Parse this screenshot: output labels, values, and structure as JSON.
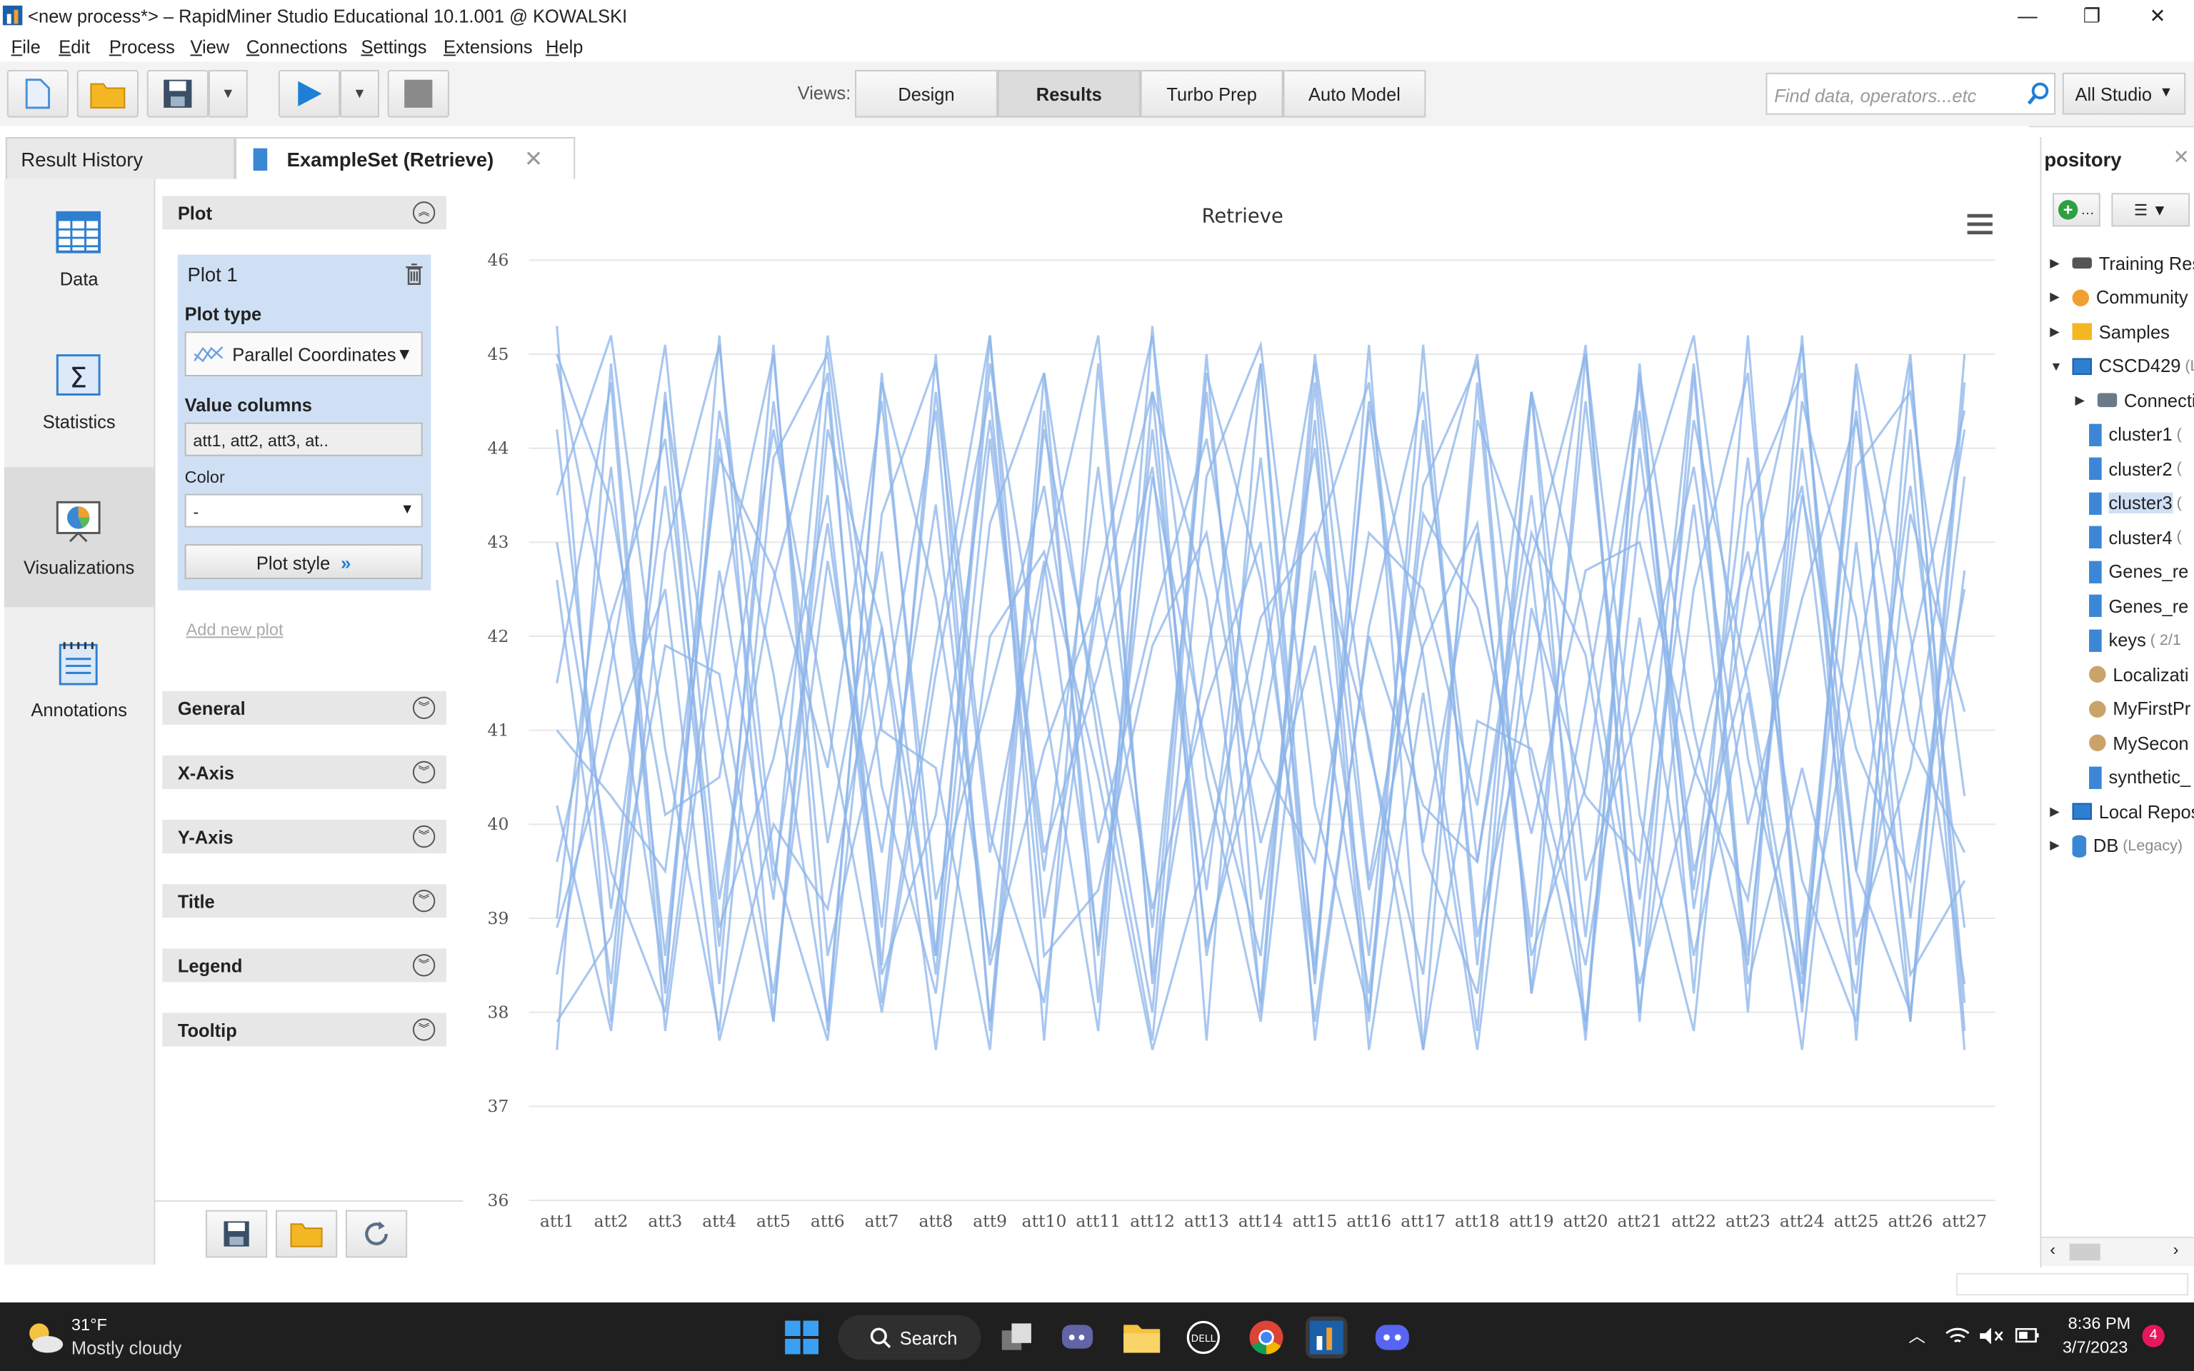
{
  "window": {
    "title": "<new process*> – RapidMiner Studio Educational 10.1.001 @ KOWALSKI"
  },
  "menu": [
    "File",
    "Edit",
    "Process",
    "View",
    "Connections",
    "Settings",
    "Extensions",
    "Help"
  ],
  "toolbar": {
    "views_label": "Views:",
    "views": [
      "Design",
      "Results",
      "Turbo Prep",
      "Auto Model"
    ],
    "active_view": "Results",
    "search_placeholder": "Find data, operators...etc",
    "studio_label": "All Studio"
  },
  "tabs": {
    "history": "Result History",
    "example": "ExampleSet (Retrieve)"
  },
  "leftbar": [
    "Data",
    "Statistics",
    "Visualizations",
    "Annotations"
  ],
  "panel": {
    "plot_section": "Plot",
    "plot_name": "Plot 1",
    "plot_type_label": "Plot type",
    "plot_type_value": "Parallel Coordinates",
    "value_columns_label": "Value columns",
    "value_columns_value": "att1, att2, att3, at..",
    "color_label": "Color",
    "color_value": "-",
    "plot_style_label": "Plot style",
    "add_new_plot": "Add new plot",
    "sections": [
      "General",
      "X-Axis",
      "Y-Axis",
      "Title",
      "Legend",
      "Tooltip"
    ]
  },
  "chart_data": {
    "type": "line",
    "subtype": "parallel-coordinates",
    "title": "Retrieve",
    "categories": [
      "att1",
      "att2",
      "att3",
      "att4",
      "att5",
      "att6",
      "att7",
      "att8",
      "att9",
      "att10",
      "att11",
      "att12",
      "att13",
      "att14",
      "att15",
      "att16",
      "att17",
      "att18",
      "att19",
      "att20",
      "att21",
      "att22",
      "att23",
      "att24",
      "att25",
      "att26",
      "att27"
    ],
    "yticks": [
      36,
      37,
      38,
      39,
      40,
      41,
      42,
      43,
      44,
      45,
      46
    ],
    "ylim": [
      36,
      46
    ],
    "line_color": "#8cb4ea",
    "grid": true,
    "legend": "none",
    "series": [
      {
        "values": [
          45.3,
          37.9,
          44.6,
          38.3,
          45.1,
          37.8,
          44.8,
          38.6,
          45.2,
          37.7,
          44.9,
          38.4,
          45.0,
          38.0,
          44.7,
          37.9,
          45.1,
          38.5,
          44.6,
          37.8,
          44.9,
          38.2,
          45.2,
          38.0,
          44.8,
          37.9,
          45.0
        ]
      },
      {
        "values": [
          37.6,
          44.9,
          38.2,
          45.2,
          37.9,
          44.6,
          38.5,
          45.0,
          37.8,
          44.8,
          38.1,
          45.3,
          37.7,
          44.9,
          38.3,
          45.1,
          37.6,
          44.7,
          38.2,
          45.0,
          37.9,
          44.8,
          38.0,
          45.2,
          37.7,
          44.9,
          38.1
        ]
      },
      {
        "values": [
          44.2,
          39.1,
          43.6,
          38.7,
          44.5,
          39.8,
          42.9,
          38.4,
          44.1,
          39.5,
          43.8,
          38.9,
          44.6,
          39.2,
          42.7,
          38.6,
          44.3,
          39.6,
          43.5,
          38.8,
          44.0,
          39.3,
          43.9,
          38.5,
          44.4,
          39.0,
          43.7
        ]
      },
      {
        "values": [
          39.0,
          43.8,
          38.6,
          44.1,
          39.4,
          43.2,
          38.9,
          44.6,
          39.7,
          42.8,
          38.7,
          44.2,
          39.3,
          43.9,
          38.5,
          44.4,
          39.8,
          43.1,
          38.8,
          44.5,
          39.2,
          43.4,
          38.6,
          44.0,
          39.5,
          43.6,
          38.9
        ]
      },
      {
        "values": [
          41.5,
          44.7,
          37.8,
          42.3,
          45.0,
          38.6,
          41.1,
          44.4,
          37.9,
          42.7,
          45.2,
          38.3,
          41.8,
          44.9,
          37.7,
          42.1,
          44.6,
          38.8,
          41.4,
          45.1,
          38.0,
          42.5,
          44.8,
          38.4,
          41.6,
          45.0,
          37.8
        ]
      },
      {
        "values": [
          42.6,
          38.3,
          44.5,
          40.9,
          37.9,
          44.2,
          42.1,
          38.6,
          44.9,
          41.3,
          37.8,
          44.6,
          42.4,
          38.1,
          45.0,
          40.8,
          38.4,
          44.3,
          42.7,
          37.7,
          44.8,
          41.0,
          38.5,
          44.5,
          42.2,
          37.9,
          44.7
        ]
      },
      {
        "values": [
          38.4,
          41.7,
          45.1,
          39.2,
          42.6,
          44.8,
          38.1,
          41.9,
          45.2,
          39.0,
          42.3,
          44.6,
          38.6,
          41.5,
          44.9,
          39.4,
          42.8,
          45.0,
          38.2,
          41.3,
          44.7,
          39.1,
          42.5,
          45.1,
          38.5,
          41.8,
          44.4
        ]
      },
      {
        "values": [
          44.9,
          42.0,
          38.3,
          44.4,
          41.6,
          37.9,
          44.7,
          42.4,
          38.6,
          44.2,
          41.2,
          38.0,
          44.8,
          42.6,
          38.4,
          44.5,
          41.8,
          37.8,
          44.6,
          42.2,
          38.7,
          44.3,
          41.5,
          38.1,
          44.9,
          42.0,
          38.3
        ]
      },
      {
        "values": [
          40.2,
          37.8,
          42.9,
          45.1,
          39.6,
          37.7,
          43.3,
          44.9,
          39.9,
          38.1,
          42.6,
          45.2,
          40.5,
          37.9,
          43.0,
          44.7,
          39.7,
          38.2,
          42.8,
          45.0,
          40.1,
          37.8,
          43.4,
          44.8,
          39.5,
          38.0,
          42.7
        ]
      },
      {
        "values": [
          43.5,
          45.2,
          40.8,
          37.8,
          43.9,
          45.0,
          40.4,
          38.2,
          43.2,
          44.8,
          40.9,
          37.7,
          43.7,
          45.1,
          40.2,
          38.0,
          43.6,
          44.9,
          40.6,
          37.9,
          43.3,
          45.2,
          40.7,
          38.3,
          43.8,
          44.6,
          40.3
        ]
      },
      {
        "values": [
          39.6,
          42.2,
          44.1,
          38.9,
          40.7,
          43.5,
          38.4,
          40.1,
          44.3,
          39.7,
          41.6,
          43.8,
          38.7,
          40.9,
          44.0,
          39.3,
          41.9,
          43.2,
          38.6,
          40.4,
          44.4,
          39.5,
          41.7,
          43.6,
          38.8,
          40.6,
          44.2
        ]
      },
      {
        "values": [
          41.0,
          40.3,
          39.5,
          43.9,
          42.7,
          40.6,
          44.5,
          39.2,
          41.4,
          43.6,
          39.8,
          42.2,
          44.1,
          40.7,
          39.6,
          43.1,
          42.5,
          40.2,
          44.6,
          39.4,
          41.2,
          43.8,
          40.0,
          42.4,
          44.3,
          40.9,
          39.7
        ]
      },
      {
        "values": [
          37.9,
          38.8,
          41.9,
          41.6,
          38.2,
          42.8,
          39.7,
          43.4,
          38.5,
          40.8,
          42.4,
          39.1,
          41.3,
          43.0,
          37.9,
          42.0,
          40.2,
          39.6,
          43.1,
          41.8,
          38.3,
          40.5,
          42.9,
          39.4,
          37.9,
          43.3,
          41.2
        ]
      },
      {
        "values": [
          45.0,
          43.4,
          40.1,
          40.5,
          44.2,
          41.1,
          38.0,
          41.6,
          44.6,
          38.6,
          39.3,
          41.9,
          43.1,
          39.8,
          41.9,
          38.2,
          43.3,
          42.3,
          39.9,
          42.7,
          43.0,
          40.6,
          39.2,
          43.5,
          40.8,
          39.4,
          42.5
        ]
      },
      {
        "values": [
          38.9,
          40.9,
          42.5,
          37.7,
          40.0,
          39.1,
          42.1,
          37.6,
          42.0,
          42.9,
          40.5,
          37.6,
          39.7,
          42.2,
          43.1,
          40.9,
          37.6,
          41.1,
          40.8,
          38.5,
          42.2,
          38.6,
          41.4,
          37.6,
          43.0,
          38.4,
          39.4
        ]
      },
      {
        "values": [
          43.0,
          39.5,
          38.0,
          42.7,
          39.2,
          45.2,
          41.0,
          40.6,
          37.6,
          44.4,
          38.6,
          43.7,
          40.8,
          38.6,
          44.3,
          37.6,
          41.4,
          37.6,
          42.3,
          40.3,
          39.6,
          44.9,
          38.3,
          40.6,
          38.2,
          44.2,
          37.6
        ]
      }
    ]
  },
  "repository": {
    "title": "pository",
    "items": [
      {
        "label": "Training Res",
        "suffix": ""
      },
      {
        "label": "Community S",
        "suffix": ""
      },
      {
        "label": "Samples",
        "suffix": ""
      },
      {
        "label": "CSCD429",
        "suffix": "(L"
      },
      {
        "label": "Connecti",
        "suffix": ""
      },
      {
        "label": "cluster1",
        "suffix": "("
      },
      {
        "label": "cluster2",
        "suffix": "("
      },
      {
        "label": "cluster3",
        "suffix": "("
      },
      {
        "label": "cluster4",
        "suffix": "("
      },
      {
        "label": "Genes_re",
        "suffix": ""
      },
      {
        "label": "Genes_re",
        "suffix": ""
      },
      {
        "label": "keys",
        "suffix": "( 2/1"
      },
      {
        "label": "Localizati",
        "suffix": ""
      },
      {
        "label": "MyFirstPr",
        "suffix": ""
      },
      {
        "label": "MySecon",
        "suffix": ""
      },
      {
        "label": "synthetic_",
        "suffix": ""
      },
      {
        "label": "Local Repos",
        "suffix": ""
      },
      {
        "label": "DB",
        "suffix": "(Legacy)"
      }
    ]
  },
  "taskbar": {
    "temperature": "31°F",
    "weather": "Mostly cloudy",
    "search_label": "Search",
    "time": "8:36 PM",
    "date": "3/7/2023",
    "notification_count": "4"
  }
}
